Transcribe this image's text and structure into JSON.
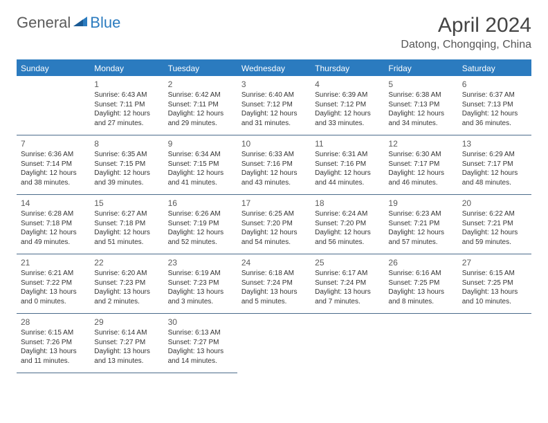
{
  "brand": {
    "general": "General",
    "blue": "Blue"
  },
  "title": "April 2024",
  "location": "Datong, Chongqing, China",
  "colors": {
    "header_bg": "#2b7bbf",
    "header_text": "#ffffff",
    "border": "#4a6a8a",
    "bg": "#ffffff"
  },
  "dows": [
    "Sunday",
    "Monday",
    "Tuesday",
    "Wednesday",
    "Thursday",
    "Friday",
    "Saturday"
  ],
  "weeks": [
    [
      null,
      {
        "n": "1",
        "sr": "6:43 AM",
        "ss": "7:11 PM",
        "dh": "12",
        "dm": "27"
      },
      {
        "n": "2",
        "sr": "6:42 AM",
        "ss": "7:11 PM",
        "dh": "12",
        "dm": "29"
      },
      {
        "n": "3",
        "sr": "6:40 AM",
        "ss": "7:12 PM",
        "dh": "12",
        "dm": "31"
      },
      {
        "n": "4",
        "sr": "6:39 AM",
        "ss": "7:12 PM",
        "dh": "12",
        "dm": "33"
      },
      {
        "n": "5",
        "sr": "6:38 AM",
        "ss": "7:13 PM",
        "dh": "12",
        "dm": "34"
      },
      {
        "n": "6",
        "sr": "6:37 AM",
        "ss": "7:13 PM",
        "dh": "12",
        "dm": "36"
      }
    ],
    [
      {
        "n": "7",
        "sr": "6:36 AM",
        "ss": "7:14 PM",
        "dh": "12",
        "dm": "38"
      },
      {
        "n": "8",
        "sr": "6:35 AM",
        "ss": "7:15 PM",
        "dh": "12",
        "dm": "39"
      },
      {
        "n": "9",
        "sr": "6:34 AM",
        "ss": "7:15 PM",
        "dh": "12",
        "dm": "41"
      },
      {
        "n": "10",
        "sr": "6:33 AM",
        "ss": "7:16 PM",
        "dh": "12",
        "dm": "43"
      },
      {
        "n": "11",
        "sr": "6:31 AM",
        "ss": "7:16 PM",
        "dh": "12",
        "dm": "44"
      },
      {
        "n": "12",
        "sr": "6:30 AM",
        "ss": "7:17 PM",
        "dh": "12",
        "dm": "46"
      },
      {
        "n": "13",
        "sr": "6:29 AM",
        "ss": "7:17 PM",
        "dh": "12",
        "dm": "48"
      }
    ],
    [
      {
        "n": "14",
        "sr": "6:28 AM",
        "ss": "7:18 PM",
        "dh": "12",
        "dm": "49"
      },
      {
        "n": "15",
        "sr": "6:27 AM",
        "ss": "7:18 PM",
        "dh": "12",
        "dm": "51"
      },
      {
        "n": "16",
        "sr": "6:26 AM",
        "ss": "7:19 PM",
        "dh": "12",
        "dm": "52"
      },
      {
        "n": "17",
        "sr": "6:25 AM",
        "ss": "7:20 PM",
        "dh": "12",
        "dm": "54"
      },
      {
        "n": "18",
        "sr": "6:24 AM",
        "ss": "7:20 PM",
        "dh": "12",
        "dm": "56"
      },
      {
        "n": "19",
        "sr": "6:23 AM",
        "ss": "7:21 PM",
        "dh": "12",
        "dm": "57"
      },
      {
        "n": "20",
        "sr": "6:22 AM",
        "ss": "7:21 PM",
        "dh": "12",
        "dm": "59"
      }
    ],
    [
      {
        "n": "21",
        "sr": "6:21 AM",
        "ss": "7:22 PM",
        "dh": "13",
        "dm": "0"
      },
      {
        "n": "22",
        "sr": "6:20 AM",
        "ss": "7:23 PM",
        "dh": "13",
        "dm": "2"
      },
      {
        "n": "23",
        "sr": "6:19 AM",
        "ss": "7:23 PM",
        "dh": "13",
        "dm": "3"
      },
      {
        "n": "24",
        "sr": "6:18 AM",
        "ss": "7:24 PM",
        "dh": "13",
        "dm": "5"
      },
      {
        "n": "25",
        "sr": "6:17 AM",
        "ss": "7:24 PM",
        "dh": "13",
        "dm": "7"
      },
      {
        "n": "26",
        "sr": "6:16 AM",
        "ss": "7:25 PM",
        "dh": "13",
        "dm": "8"
      },
      {
        "n": "27",
        "sr": "6:15 AM",
        "ss": "7:25 PM",
        "dh": "13",
        "dm": "10"
      }
    ],
    [
      {
        "n": "28",
        "sr": "6:15 AM",
        "ss": "7:26 PM",
        "dh": "13",
        "dm": "11"
      },
      {
        "n": "29",
        "sr": "6:14 AM",
        "ss": "7:27 PM",
        "dh": "13",
        "dm": "13"
      },
      {
        "n": "30",
        "sr": "6:13 AM",
        "ss": "7:27 PM",
        "dh": "13",
        "dm": "14"
      },
      null,
      null,
      null,
      null
    ]
  ],
  "labels": {
    "sunrise": "Sunrise:",
    "sunset": "Sunset:",
    "daylight_prefix": "Daylight:",
    "hours_word": "hours",
    "and_word": "and",
    "minutes_word": "minutes."
  }
}
